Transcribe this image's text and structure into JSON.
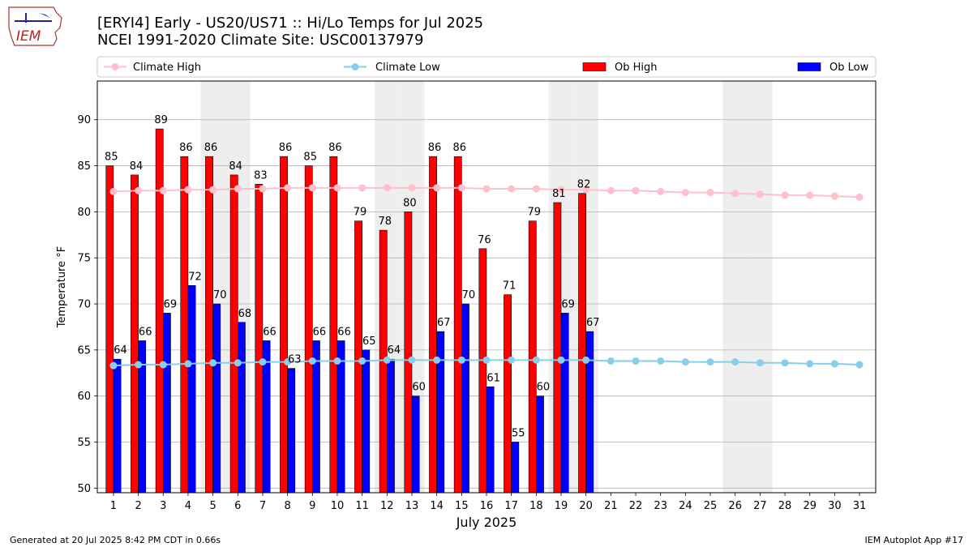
{
  "logo": {
    "text": "IEM"
  },
  "title": {
    "line1": "[ERYI4] Early - US20/US71 :: Hi/Lo Temps for Jul 2025",
    "line2": "NCEI 1991-2020 Climate Site: USC00137979"
  },
  "footer": {
    "left": "Generated at 20 Jul 2025 8:42 PM CDT in 0.66s",
    "right": "IEM Autoplot App #17"
  },
  "colors": {
    "ob_high": "#ff0000",
    "ob_low": "#0000ff",
    "climate_high": "#ffc0cb",
    "climate_low": "#87ceeb",
    "weekend_shade": "#eeeeee",
    "grid": "#b0b0b0"
  },
  "chart_data": {
    "type": "bar",
    "xlabel": "July 2025",
    "ylabel": "Temperature °F",
    "ylim": [
      49.5,
      94.2
    ],
    "yticks": [
      50,
      55,
      60,
      65,
      70,
      75,
      80,
      85,
      90
    ],
    "grid": "horizontal",
    "legend_position": "top",
    "categories": [
      "1",
      "2",
      "3",
      "4",
      "5",
      "6",
      "7",
      "8",
      "9",
      "10",
      "11",
      "12",
      "13",
      "14",
      "15",
      "16",
      "17",
      "18",
      "19",
      "20",
      "21",
      "22",
      "23",
      "24",
      "25",
      "26",
      "27",
      "28",
      "29",
      "30",
      "31"
    ],
    "weekend_days": [
      5,
      6,
      12,
      13,
      19,
      20,
      26,
      27
    ],
    "series": [
      {
        "name": "Climate High",
        "kind": "line",
        "values": [
          82.2,
          82.3,
          82.3,
          82.4,
          82.4,
          82.5,
          82.5,
          82.6,
          82.6,
          82.6,
          82.6,
          82.6,
          82.6,
          82.6,
          82.6,
          82.5,
          82.5,
          82.5,
          82.4,
          82.4,
          82.3,
          82.3,
          82.2,
          82.1,
          82.1,
          82.0,
          81.9,
          81.8,
          81.8,
          81.7,
          81.6
        ]
      },
      {
        "name": "Climate Low",
        "kind": "line",
        "values": [
          63.3,
          63.4,
          63.4,
          63.5,
          63.6,
          63.6,
          63.7,
          63.7,
          63.8,
          63.8,
          63.8,
          63.9,
          63.9,
          63.9,
          63.9,
          63.9,
          63.9,
          63.9,
          63.9,
          63.9,
          63.8,
          63.8,
          63.8,
          63.7,
          63.7,
          63.7,
          63.6,
          63.6,
          63.5,
          63.5,
          63.4
        ]
      },
      {
        "name": "Ob High",
        "kind": "bar",
        "values": [
          85,
          84,
          89,
          86,
          86,
          84,
          83,
          86,
          85,
          86,
          79,
          78,
          80,
          86,
          86,
          76,
          71,
          79,
          81,
          82,
          null,
          null,
          null,
          null,
          null,
          null,
          null,
          null,
          null,
          null,
          null
        ]
      },
      {
        "name": "Ob Low",
        "kind": "bar",
        "values": [
          64,
          66,
          69,
          72,
          70,
          68,
          66,
          63,
          66,
          66,
          65,
          64,
          60,
          67,
          70,
          61,
          55,
          60,
          69,
          67,
          null,
          null,
          null,
          null,
          null,
          null,
          null,
          null,
          null,
          null,
          null
        ]
      }
    ]
  }
}
